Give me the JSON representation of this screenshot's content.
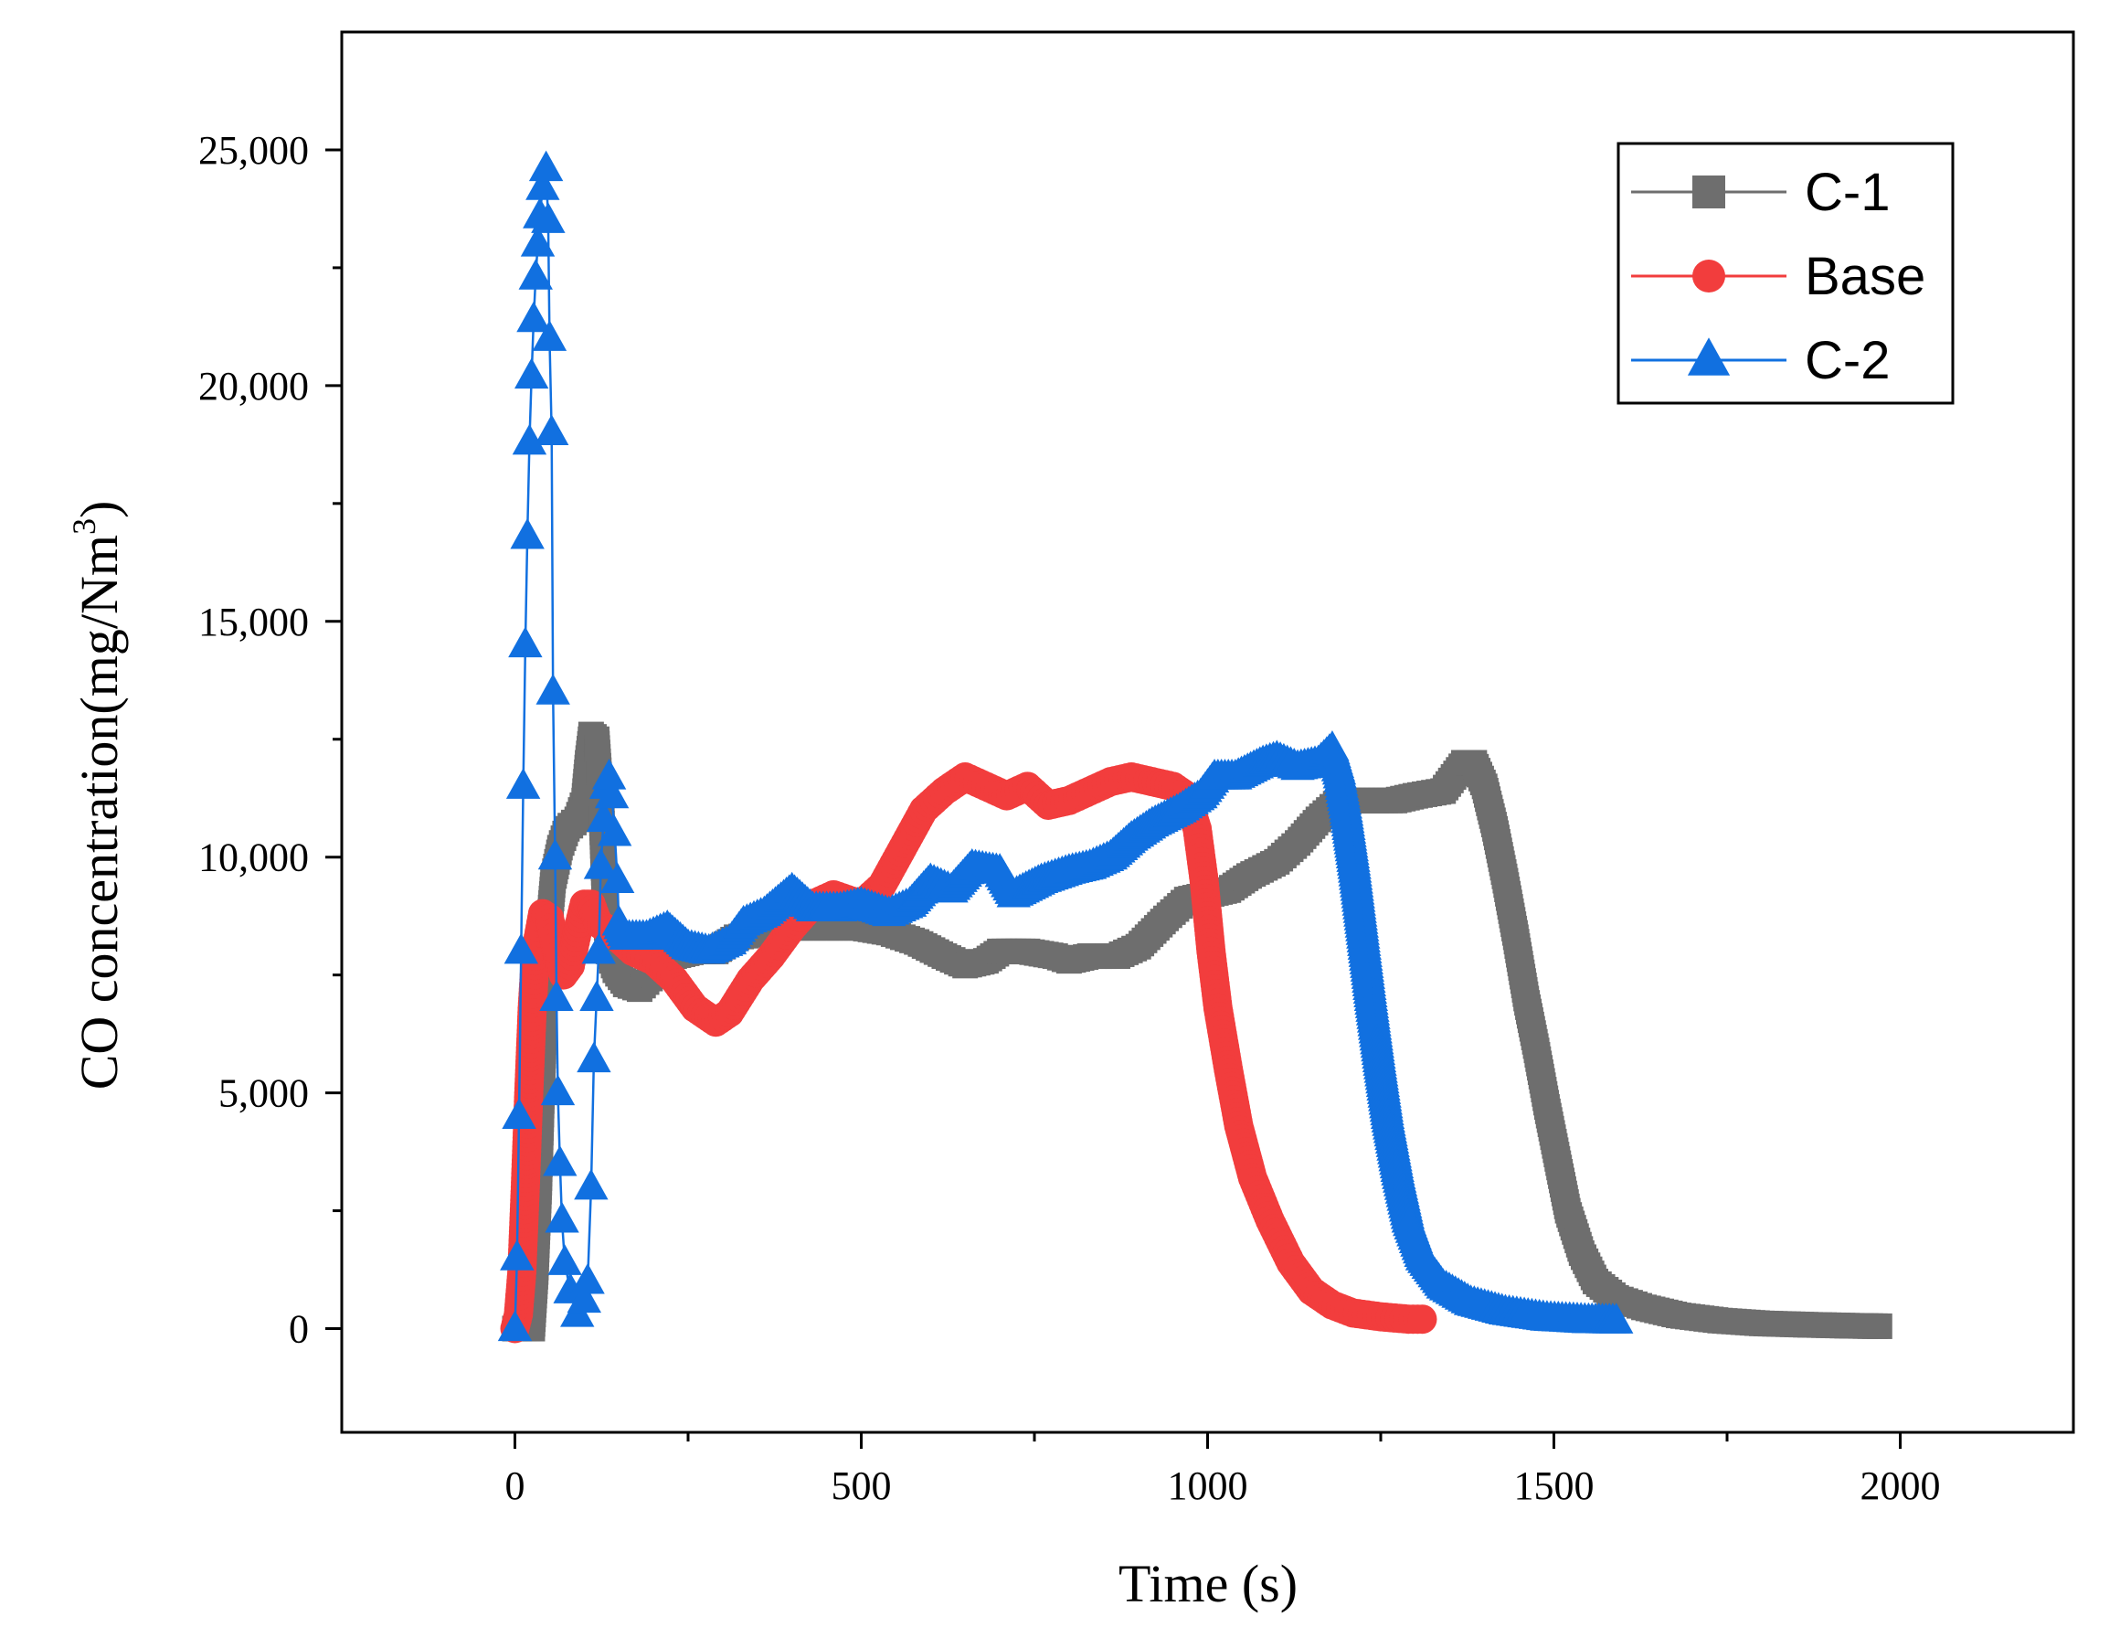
{
  "chart_data": {
    "type": "line",
    "xlabel": "Time (s)",
    "ylabel_main": "CO concentration(mg/Nm",
    "ylabel_sup": "3",
    "ylabel_close": ")",
    "xlim": [
      -250,
      2250
    ],
    "ylim": [
      -2200,
      27500
    ],
    "x_ticks": [
      0,
      500,
      1000,
      1500,
      2000
    ],
    "x_tick_labels": [
      "0",
      "500",
      "1000",
      "1500",
      "2000"
    ],
    "x_minor_ticks": [
      250,
      750,
      1250,
      1750
    ],
    "y_ticks": [
      0,
      5000,
      10000,
      15000,
      20000,
      25000
    ],
    "y_tick_labels": [
      "0",
      "5,000",
      "10,000",
      "15,000",
      "20,000",
      "25,000"
    ],
    "y_minor_ticks": [
      2500,
      7500,
      12500,
      17500,
      22500
    ],
    "grid": false,
    "legend_position": "top-right",
    "series": [
      {
        "name": "C-1",
        "color": "#6e6e6e",
        "marker": "square",
        "points": [
          [
            0,
            0
          ],
          [
            25,
            0
          ],
          [
            30,
            1200
          ],
          [
            35,
            3000
          ],
          [
            40,
            5500
          ],
          [
            45,
            7800
          ],
          [
            55,
            9500
          ],
          [
            65,
            10200
          ],
          [
            75,
            10600
          ],
          [
            90,
            10800
          ],
          [
            100,
            11200
          ],
          [
            105,
            12000
          ],
          [
            110,
            12600
          ],
          [
            118,
            12500
          ],
          [
            125,
            11000
          ],
          [
            130,
            9000
          ],
          [
            135,
            8000
          ],
          [
            145,
            7600
          ],
          [
            160,
            7300
          ],
          [
            180,
            7200
          ],
          [
            200,
            7500
          ],
          [
            230,
            7900
          ],
          [
            260,
            8000
          ],
          [
            290,
            8000
          ],
          [
            320,
            8300
          ],
          [
            360,
            8400
          ],
          [
            400,
            8500
          ],
          [
            450,
            8500
          ],
          [
            500,
            8500
          ],
          [
            540,
            8400
          ],
          [
            580,
            8200
          ],
          [
            620,
            7900
          ],
          [
            650,
            7700
          ],
          [
            680,
            7800
          ],
          [
            700,
            8000
          ],
          [
            740,
            8000
          ],
          [
            780,
            7900
          ],
          [
            800,
            7800
          ],
          [
            830,
            7900
          ],
          [
            870,
            7900
          ],
          [
            900,
            8100
          ],
          [
            940,
            8700
          ],
          [
            970,
            9100
          ],
          [
            1000,
            9200
          ],
          [
            1030,
            9300
          ],
          [
            1060,
            9600
          ],
          [
            1100,
            9900
          ],
          [
            1130,
            10300
          ],
          [
            1160,
            10800
          ],
          [
            1190,
            11200
          ],
          [
            1230,
            11200
          ],
          [
            1270,
            11200
          ],
          [
            1300,
            11300
          ],
          [
            1340,
            11400
          ],
          [
            1370,
            12000
          ],
          [
            1385,
            12000
          ],
          [
            1400,
            11500
          ],
          [
            1415,
            10600
          ],
          [
            1430,
            9500
          ],
          [
            1445,
            8300
          ],
          [
            1460,
            7000
          ],
          [
            1475,
            5900
          ],
          [
            1490,
            4700
          ],
          [
            1505,
            3600
          ],
          [
            1520,
            2500
          ],
          [
            1540,
            1600
          ],
          [
            1560,
            1000
          ],
          [
            1590,
            650
          ],
          [
            1630,
            450
          ],
          [
            1680,
            280
          ],
          [
            1740,
            170
          ],
          [
            1800,
            110
          ],
          [
            1870,
            80
          ],
          [
            1930,
            60
          ],
          [
            1970,
            50
          ]
        ]
      },
      {
        "name": "Base",
        "color": "#f23d3d",
        "marker": "circle",
        "points": [
          [
            0,
            0
          ],
          [
            5,
            300
          ],
          [
            10,
            1200
          ],
          [
            15,
            3000
          ],
          [
            20,
            5000
          ],
          [
            25,
            6800
          ],
          [
            30,
            8000
          ],
          [
            40,
            8800
          ],
          [
            50,
            8700
          ],
          [
            60,
            8000
          ],
          [
            70,
            7500
          ],
          [
            80,
            7700
          ],
          [
            90,
            8400
          ],
          [
            100,
            9000
          ],
          [
            110,
            9000
          ],
          [
            120,
            8600
          ],
          [
            140,
            8400
          ],
          [
            170,
            8000
          ],
          [
            200,
            7800
          ],
          [
            230,
            7400
          ],
          [
            260,
            6800
          ],
          [
            290,
            6500
          ],
          [
            310,
            6700
          ],
          [
            340,
            7400
          ],
          [
            370,
            7900
          ],
          [
            400,
            8500
          ],
          [
            430,
            9000
          ],
          [
            460,
            9200
          ],
          [
            500,
            9000
          ],
          [
            530,
            9400
          ],
          [
            560,
            10200
          ],
          [
            590,
            11000
          ],
          [
            620,
            11400
          ],
          [
            650,
            11700
          ],
          [
            680,
            11500
          ],
          [
            710,
            11300
          ],
          [
            740,
            11500
          ],
          [
            770,
            11100
          ],
          [
            800,
            11200
          ],
          [
            830,
            11400
          ],
          [
            860,
            11600
          ],
          [
            890,
            11700
          ],
          [
            920,
            11600
          ],
          [
            950,
            11500
          ],
          [
            970,
            11300
          ],
          [
            985,
            10600
          ],
          [
            995,
            9500
          ],
          [
            1005,
            8000
          ],
          [
            1015,
            6800
          ],
          [
            1030,
            5500
          ],
          [
            1045,
            4300
          ],
          [
            1065,
            3200
          ],
          [
            1090,
            2300
          ],
          [
            1120,
            1400
          ],
          [
            1150,
            800
          ],
          [
            1180,
            500
          ],
          [
            1210,
            330
          ],
          [
            1250,
            250
          ],
          [
            1290,
            200
          ],
          [
            1310,
            200
          ]
        ]
      },
      {
        "name": "C-2",
        "color": "#1170e0",
        "marker": "triangle",
        "points": [
          [
            0,
            0
          ],
          [
            3,
            1500
          ],
          [
            6,
            4500
          ],
          [
            9,
            8000
          ],
          [
            12,
            11500
          ],
          [
            15,
            14500
          ],
          [
            18,
            16800
          ],
          [
            21,
            18800
          ],
          [
            24,
            20200
          ],
          [
            27,
            21400
          ],
          [
            30,
            22300
          ],
          [
            33,
            23000
          ],
          [
            36,
            23600
          ],
          [
            40,
            24200
          ],
          [
            45,
            24600
          ],
          [
            48,
            23500
          ],
          [
            50,
            21000
          ],
          [
            53,
            19000
          ],
          [
            55,
            13500
          ],
          [
            58,
            10000
          ],
          [
            60,
            7000
          ],
          [
            62,
            5000
          ],
          [
            65,
            3500
          ],
          [
            68,
            2300
          ],
          [
            72,
            1400
          ],
          [
            80,
            800
          ],
          [
            90,
            300
          ],
          [
            100,
            600
          ],
          [
            105,
            1000
          ],
          [
            110,
            3000
          ],
          [
            114,
            5700
          ],
          [
            118,
            7000
          ],
          [
            121,
            8000
          ],
          [
            124,
            9800
          ],
          [
            128,
            10800
          ],
          [
            132,
            11500
          ],
          [
            136,
            11700
          ],
          [
            140,
            11300
          ],
          [
            144,
            10500
          ],
          [
            148,
            9500
          ],
          [
            150,
            8600
          ],
          [
            160,
            8300
          ],
          [
            190,
            8300
          ],
          [
            220,
            8500
          ],
          [
            250,
            8100
          ],
          [
            280,
            8000
          ],
          [
            310,
            8200
          ],
          [
            330,
            8600
          ],
          [
            360,
            8800
          ],
          [
            400,
            9300
          ],
          [
            430,
            8900
          ],
          [
            470,
            8900
          ],
          [
            500,
            9000
          ],
          [
            540,
            8800
          ],
          [
            570,
            9000
          ],
          [
            600,
            9500
          ],
          [
            630,
            9300
          ],
          [
            660,
            9800
          ],
          [
            700,
            9700
          ],
          [
            720,
            9200
          ],
          [
            760,
            9500
          ],
          [
            800,
            9700
          ],
          [
            830,
            9800
          ],
          [
            860,
            10000
          ],
          [
            890,
            10400
          ],
          [
            920,
            10700
          ],
          [
            960,
            11000
          ],
          [
            990,
            11300
          ],
          [
            1010,
            11700
          ],
          [
            1040,
            11700
          ],
          [
            1080,
            12000
          ],
          [
            1100,
            12100
          ],
          [
            1130,
            11900
          ],
          [
            1160,
            12000
          ],
          [
            1180,
            12300
          ],
          [
            1190,
            11800
          ],
          [
            1200,
            11000
          ],
          [
            1212,
            9800
          ],
          [
            1224,
            8400
          ],
          [
            1236,
            7000
          ],
          [
            1248,
            5700
          ],
          [
            1260,
            4500
          ],
          [
            1275,
            3300
          ],
          [
            1290,
            2300
          ],
          [
            1310,
            1500
          ],
          [
            1340,
            900
          ],
          [
            1380,
            550
          ],
          [
            1430,
            350
          ],
          [
            1490,
            220
          ],
          [
            1550,
            170
          ],
          [
            1590,
            160
          ]
        ]
      }
    ]
  }
}
